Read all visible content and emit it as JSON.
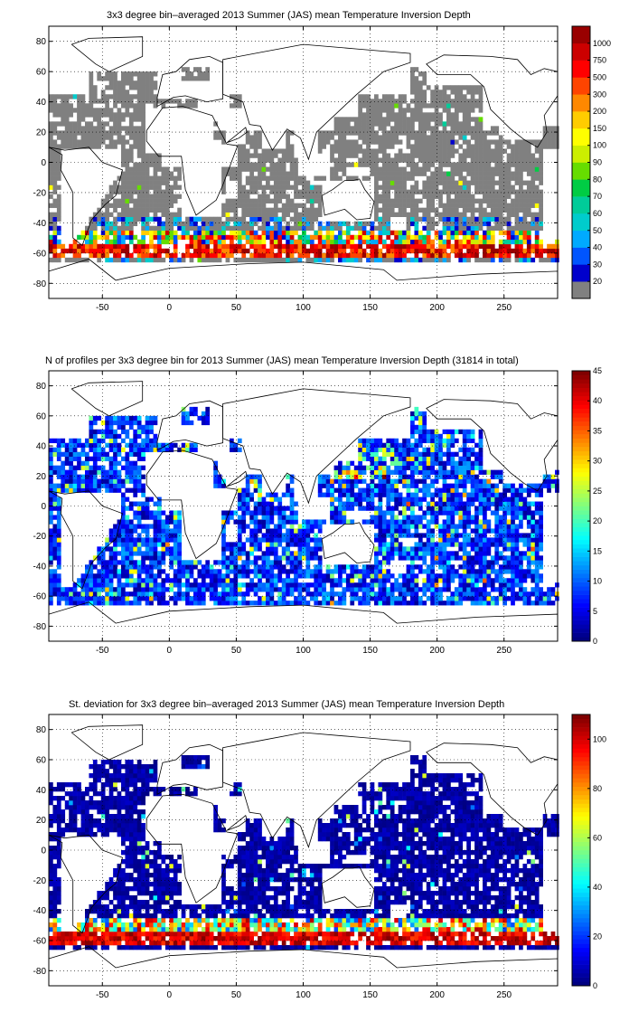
{
  "chart_data": [
    {
      "type": "heatmap",
      "title": "3x3 degree bin–averaged 2013 Summer (JAS) mean Temperature Inversion Depth",
      "xlim": [
        -90,
        290
      ],
      "ylim": [
        -90,
        90
      ],
      "x_ticks": [
        "-50",
        "0",
        "50",
        "100",
        "150",
        "200",
        "250"
      ],
      "y_ticks": [
        "80",
        "60",
        "40",
        "20",
        "0",
        "-20",
        "-40",
        "-60",
        "-80"
      ],
      "grid": true,
      "colorbar": {
        "type": "discrete",
        "levels": [
          "20",
          "30",
          "40",
          "50",
          "60",
          "70",
          "80",
          "90",
          "100",
          "150",
          "200",
          "300",
          "500",
          "750",
          "1000"
        ],
        "colors": [
          "#808080",
          "#0000cc",
          "#0055ff",
          "#00aaff",
          "#00cccc",
          "#00cc99",
          "#00cc44",
          "#66dd00",
          "#ccee00",
          "#ffff00",
          "#ffcc00",
          "#ff8800",
          "#ff4400",
          "#ff0000",
          "#cc0000",
          "#990000"
        ]
      },
      "bins": {
        "bin_size_deg": 3,
        "coverage": "most of the open ocean between about 60S and 80N is filled; gray (<=20) dominates; deep values (150-1000) concentrated in the Southern Ocean band 45S-65S; sparse blue-green cells 40S-50S and along the equator"
      }
    },
    {
      "type": "heatmap",
      "title": "N of profiles per 3x3 degree bin for 2013 Summer (JAS) mean Temperature Inversion Depth  (31814 in total)",
      "xlim": [
        -90,
        290
      ],
      "ylim": [
        -90,
        90
      ],
      "x_ticks": [
        "-50",
        "0",
        "50",
        "100",
        "150",
        "200",
        "250"
      ],
      "y_ticks": [
        "80",
        "60",
        "40",
        "20",
        "0",
        "-20",
        "-40",
        "-60",
        "-80"
      ],
      "grid": true,
      "colorbar": {
        "type": "continuous",
        "colormap": "jet",
        "range": [
          0,
          45
        ],
        "ticks": [
          "0",
          "5",
          "10",
          "15",
          "20",
          "25",
          "30",
          "35",
          "40",
          "45"
        ]
      },
      "bins": {
        "bin_size_deg": 3,
        "total_profiles": 31814,
        "coverage": "mostly dark-to-light blue counts (1-15) over the global ocean; hotspots of 25-45 in the western Pacific near 20N-40N, the Mediterranean, Arabian Sea and scattered near the Kuroshio"
      }
    },
    {
      "type": "heatmap",
      "title": "St. deviation for 3x3 degree bin–averaged 2013 Summer (JAS) mean Temperature Inversion Depth",
      "xlim": [
        -90,
        290
      ],
      "ylim": [
        -90,
        90
      ],
      "x_ticks": [
        "-50",
        "0",
        "50",
        "100",
        "150",
        "200",
        "250"
      ],
      "y_ticks": [
        "80",
        "60",
        "40",
        "20",
        "0",
        "-20",
        "-40",
        "-60",
        "-80"
      ],
      "grid": true,
      "colorbar": {
        "type": "continuous",
        "colormap": "jet",
        "range": [
          0,
          110
        ],
        "ticks": [
          "0",
          "20",
          "40",
          "60",
          "80",
          "100"
        ]
      },
      "bins": {
        "bin_size_deg": 3,
        "coverage": "mostly dark blue (0-10) everywhere; high standard deviation (60-110, dark red) in the Southern Ocean band 45S-62S"
      }
    }
  ]
}
